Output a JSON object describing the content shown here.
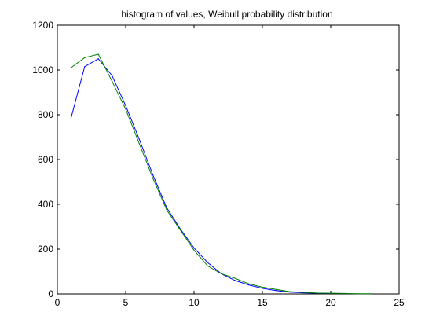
{
  "chart_data": {
    "type": "line",
    "title": "histogram of values, Weibull probability distribution",
    "xlabel": "",
    "ylabel": "",
    "xlim": [
      0,
      25
    ],
    "ylim": [
      0,
      1200
    ],
    "xticks": [
      0,
      5,
      10,
      15,
      20,
      25
    ],
    "yticks": [
      0,
      200,
      400,
      600,
      800,
      1000,
      1200
    ],
    "xtick_labels": [
      "0",
      "5",
      "10",
      "15",
      "20",
      "25"
    ],
    "ytick_labels": [
      "0",
      "200",
      "400",
      "600",
      "800",
      "1000",
      "1200"
    ],
    "grid": false,
    "legend": "none",
    "series": [
      {
        "color": "#0000ff",
        "x": [
          1,
          2,
          3,
          4,
          5,
          6,
          7,
          8,
          9,
          10,
          11,
          12,
          13,
          14,
          15,
          16,
          17,
          18,
          19,
          20
        ],
        "values": [
          785,
          1015,
          1050,
          975,
          840,
          690,
          530,
          385,
          290,
          205,
          140,
          90,
          60,
          40,
          25,
          15,
          8,
          5,
          3,
          2
        ]
      },
      {
        "color": "#008000",
        "x": [
          1,
          2,
          3,
          4,
          5,
          6,
          7,
          8,
          9,
          10,
          11,
          12,
          13,
          14,
          15,
          16,
          17,
          18,
          19,
          20,
          21,
          22,
          23
        ],
        "values": [
          1010,
          1055,
          1070,
          950,
          825,
          670,
          515,
          375,
          285,
          195,
          125,
          90,
          70,
          45,
          30,
          20,
          10,
          7,
          4,
          3,
          2,
          1,
          1
        ]
      }
    ]
  }
}
